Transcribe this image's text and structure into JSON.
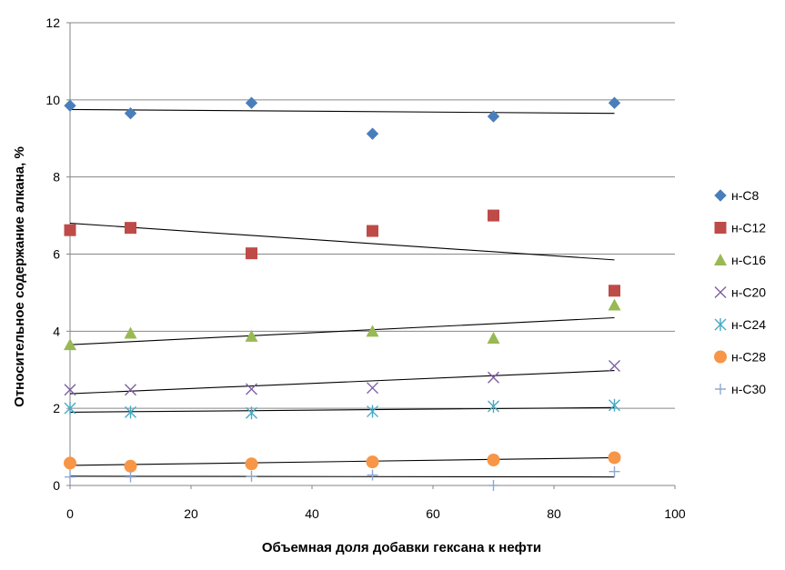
{
  "chart_data": {
    "type": "scatter",
    "title": "",
    "xlabel": "Объемная доля добавки гексана  к нефти",
    "ylabel": "Относительное  содержание  алкана, %",
    "xlim": [
      0,
      100
    ],
    "ylim": [
      0,
      12
    ],
    "xticks": [
      0,
      20,
      40,
      60,
      80,
      100
    ],
    "yticks": [
      0,
      2,
      4,
      6,
      8,
      10,
      12
    ],
    "xtick_labels": [
      "0",
      "20",
      "40",
      "60",
      "80",
      "100"
    ],
    "ytick_labels": [
      "0",
      "2",
      "4",
      "6",
      "8",
      "10",
      "12"
    ],
    "grid": "horizontal",
    "legend_position": "right",
    "trendline_type": "linear",
    "series": [
      {
        "name": "н-C8",
        "marker": "diamond",
        "color": "#4a7ebb",
        "x": [
          0,
          10,
          30,
          50,
          70,
          90
        ],
        "y": [
          9.85,
          9.65,
          9.92,
          9.12,
          9.57,
          9.92
        ],
        "trend": [
          9.75,
          9.65
        ]
      },
      {
        "name": "н-C12",
        "marker": "square",
        "color": "#be4b48",
        "x": [
          0,
          10,
          30,
          50,
          70,
          90
        ],
        "y": [
          6.62,
          6.68,
          6.02,
          6.6,
          7.0,
          5.05
        ],
        "trend": [
          6.8,
          5.85
        ]
      },
      {
        "name": "н-C16",
        "marker": "triangle",
        "color": "#98b954",
        "x": [
          0,
          10,
          30,
          50,
          70,
          90
        ],
        "y": [
          3.65,
          3.95,
          3.87,
          4.0,
          3.82,
          4.68
        ],
        "trend": [
          3.65,
          4.35
        ]
      },
      {
        "name": "н-C20",
        "marker": "x",
        "color": "#7d60a0",
        "x": [
          0,
          10,
          30,
          50,
          70,
          90
        ],
        "y": [
          2.48,
          2.48,
          2.5,
          2.53,
          2.8,
          3.1
        ],
        "trend": [
          2.38,
          2.98
        ]
      },
      {
        "name": "н-C24",
        "marker": "asterisk",
        "color": "#46aac5",
        "x": [
          0,
          10,
          30,
          50,
          70,
          90
        ],
        "y": [
          2.0,
          1.9,
          1.88,
          1.92,
          2.05,
          2.08
        ],
        "trend": [
          1.9,
          2.02
        ]
      },
      {
        "name": "н-C28",
        "marker": "circle",
        "color": "#f79646",
        "x": [
          0,
          10,
          30,
          50,
          70,
          90
        ],
        "y": [
          0.58,
          0.5,
          0.56,
          0.61,
          0.66,
          0.72
        ],
        "trend": [
          0.52,
          0.72
        ]
      },
      {
        "name": "н-C30",
        "marker": "plus",
        "color": "#8fa8d0",
        "x": [
          0,
          10,
          30,
          50,
          70,
          90
        ],
        "y": [
          0.22,
          0.22,
          0.24,
          0.27,
          0.0,
          0.36
        ],
        "trend": [
          0.24,
          0.22
        ]
      }
    ]
  }
}
